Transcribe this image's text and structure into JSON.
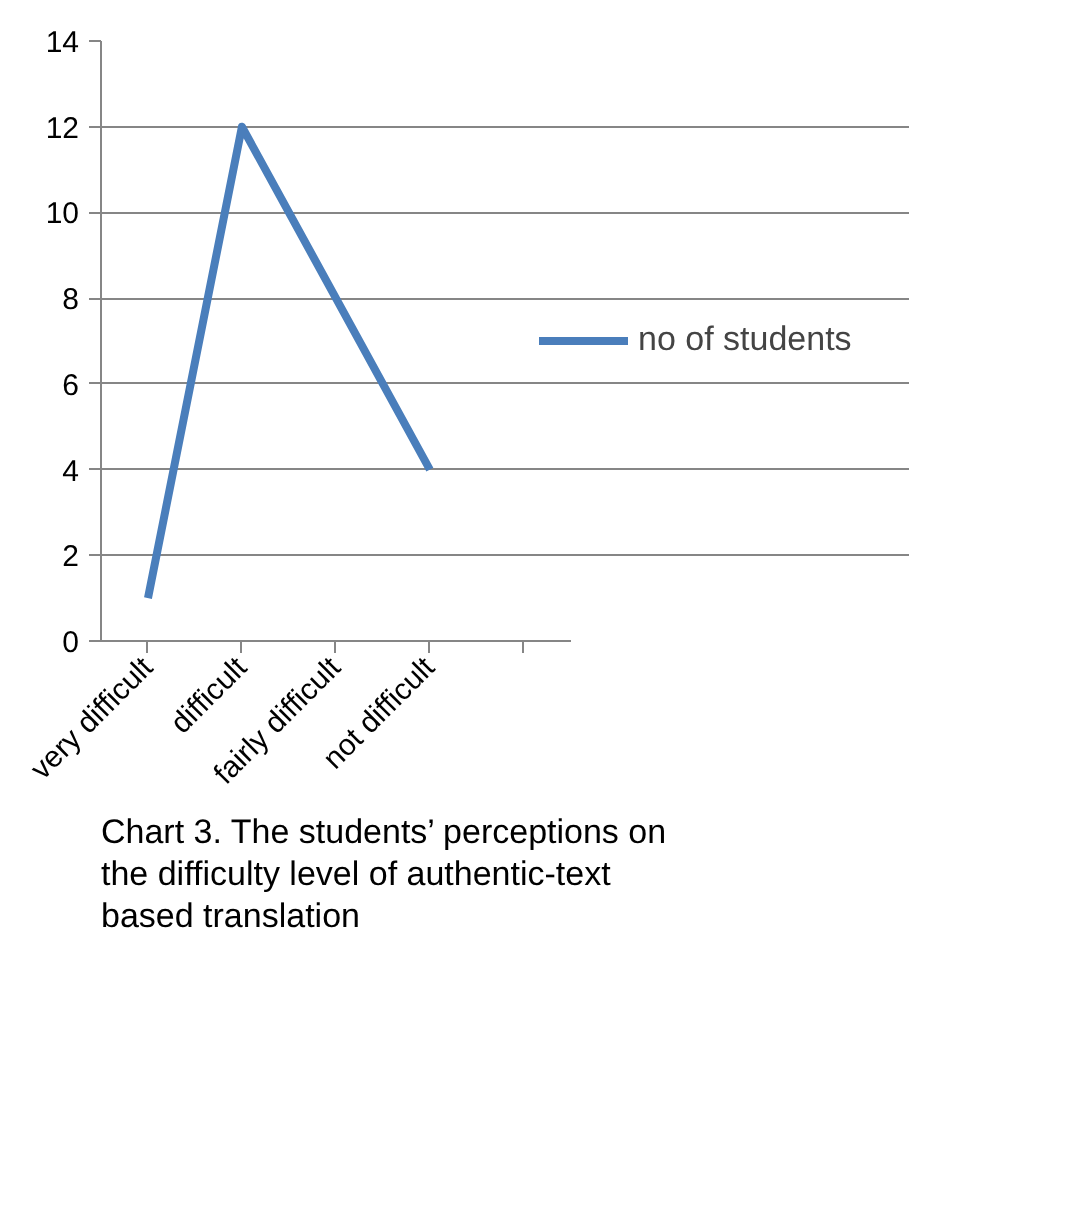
{
  "chart_data": {
    "type": "line",
    "categories": [
      "very difficult",
      "difficult",
      "fairly difficult",
      "not difficult",
      null
    ],
    "series": [
      {
        "name": "no of students",
        "color": "#4a7ebb",
        "values": [
          1,
          12,
          8,
          4,
          null
        ]
      }
    ],
    "ylim": [
      0,
      14
    ],
    "yticks": [
      0,
      2,
      4,
      6,
      8,
      10,
      12,
      14
    ],
    "grid": "y",
    "legend": "right",
    "marker": "none",
    "line_style": "solid",
    "annotations": [
      "Chart 3. The students’ perceptions on the difficulty level of authentic-text based translation"
    ]
  }
}
